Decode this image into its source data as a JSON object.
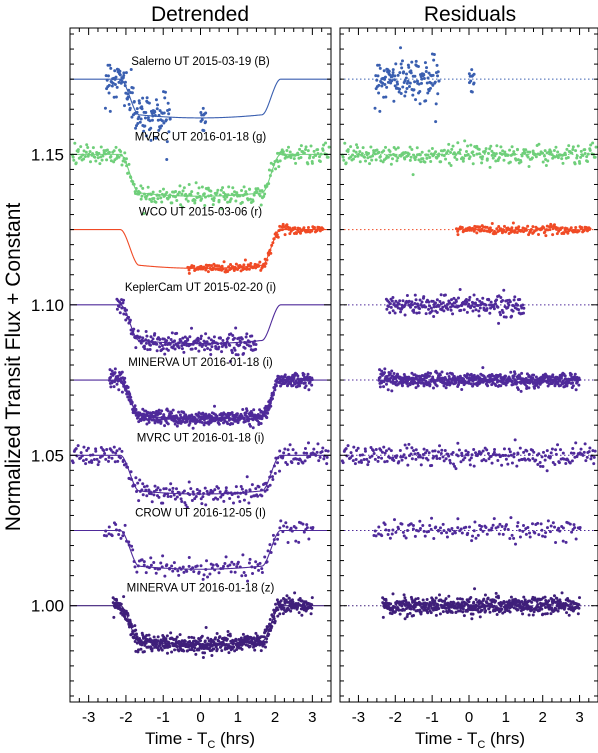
{
  "figure": {
    "left_title": "Detrended",
    "right_title": "Residuals",
    "ylabel": "Normalized Transit Flux + Constant",
    "xlabel_main": "Time - T",
    "xlabel_sub": "C",
    "xlabel_tail": " (hrs)"
  },
  "chart_data": {
    "type": "scatter",
    "panels": [
      "Detrended",
      "Residuals"
    ],
    "xlim": [
      -3.5,
      3.5
    ],
    "ylim": [
      0.968,
      1.192
    ],
    "xticks": [
      -3,
      -2,
      -1,
      0,
      1,
      2,
      3
    ],
    "xtick_labels": [
      "-3",
      "-2",
      "-1",
      "0",
      "1",
      "2",
      "3"
    ],
    "yticks": [
      1.0,
      1.05,
      1.1,
      1.15
    ],
    "ytick_labels": [
      "1.00",
      "1.05",
      "1.10",
      "1.15"
    ],
    "transit": {
      "half_duration_hrs": 1.9,
      "ingress_hrs": 0.5
    },
    "series": [
      {
        "label": "Salerno UT 2015-03-19 (B)",
        "baseline": 1.175,
        "depth": 0.0125,
        "color": "#3a5fb0",
        "points": 150,
        "scatter": 0.0035,
        "segments": [
          [
            -2.55,
            -0.8
          ],
          [
            0.0,
            0.15
          ]
        ]
      },
      {
        "label": "MVRC UT 2016-01-18 (g)",
        "baseline": 1.15,
        "depth": 0.0135,
        "color": "#6fcf7a",
        "points": 320,
        "scatter": 0.0016,
        "segments": [
          [
            -3.45,
            3.45
          ]
        ]
      },
      {
        "label": "WCO UT 2015-03-06 (r)",
        "baseline": 1.125,
        "depth": 0.0125,
        "color": "#f04a25",
        "points": 170,
        "scatter": 0.0008,
        "segments": [
          [
            -0.35,
            3.3
          ]
        ]
      },
      {
        "label": "KeplerCam UT 2015-02-20 (i)",
        "baseline": 1.1,
        "depth": 0.0125,
        "color": "#4f2a9a",
        "points": 240,
        "scatter": 0.0016,
        "segments": [
          [
            -2.25,
            1.5
          ]
        ]
      },
      {
        "label": "MINERVA UT 2016-01-18 (i)",
        "baseline": 1.075,
        "depth": 0.0125,
        "color": "#4f2a9a",
        "points": 600,
        "scatter": 0.0012,
        "segments": [
          [
            -2.45,
            3.0
          ]
        ]
      },
      {
        "label": "MVRC UT 2016-01-18 (i)",
        "baseline": 1.05,
        "depth": 0.0125,
        "color": "#4f2a9a",
        "points": 260,
        "scatter": 0.0016,
        "segments": [
          [
            -3.45,
            3.45
          ]
        ]
      },
      {
        "label": "CROW UT 2016-12-05 (I)",
        "baseline": 1.025,
        "depth": 0.0125,
        "color": "#4f2a9a",
        "points": 150,
        "scatter": 0.0017,
        "segments": [
          [
            -2.6,
            3.05
          ]
        ]
      },
      {
        "label": "MINERVA UT 2016-01-18 (z)",
        "baseline": 1.0,
        "depth": 0.0125,
        "color": "#3f1f7a",
        "points": 600,
        "scatter": 0.0015,
        "segments": [
          [
            -2.35,
            3.0
          ]
        ]
      }
    ]
  }
}
